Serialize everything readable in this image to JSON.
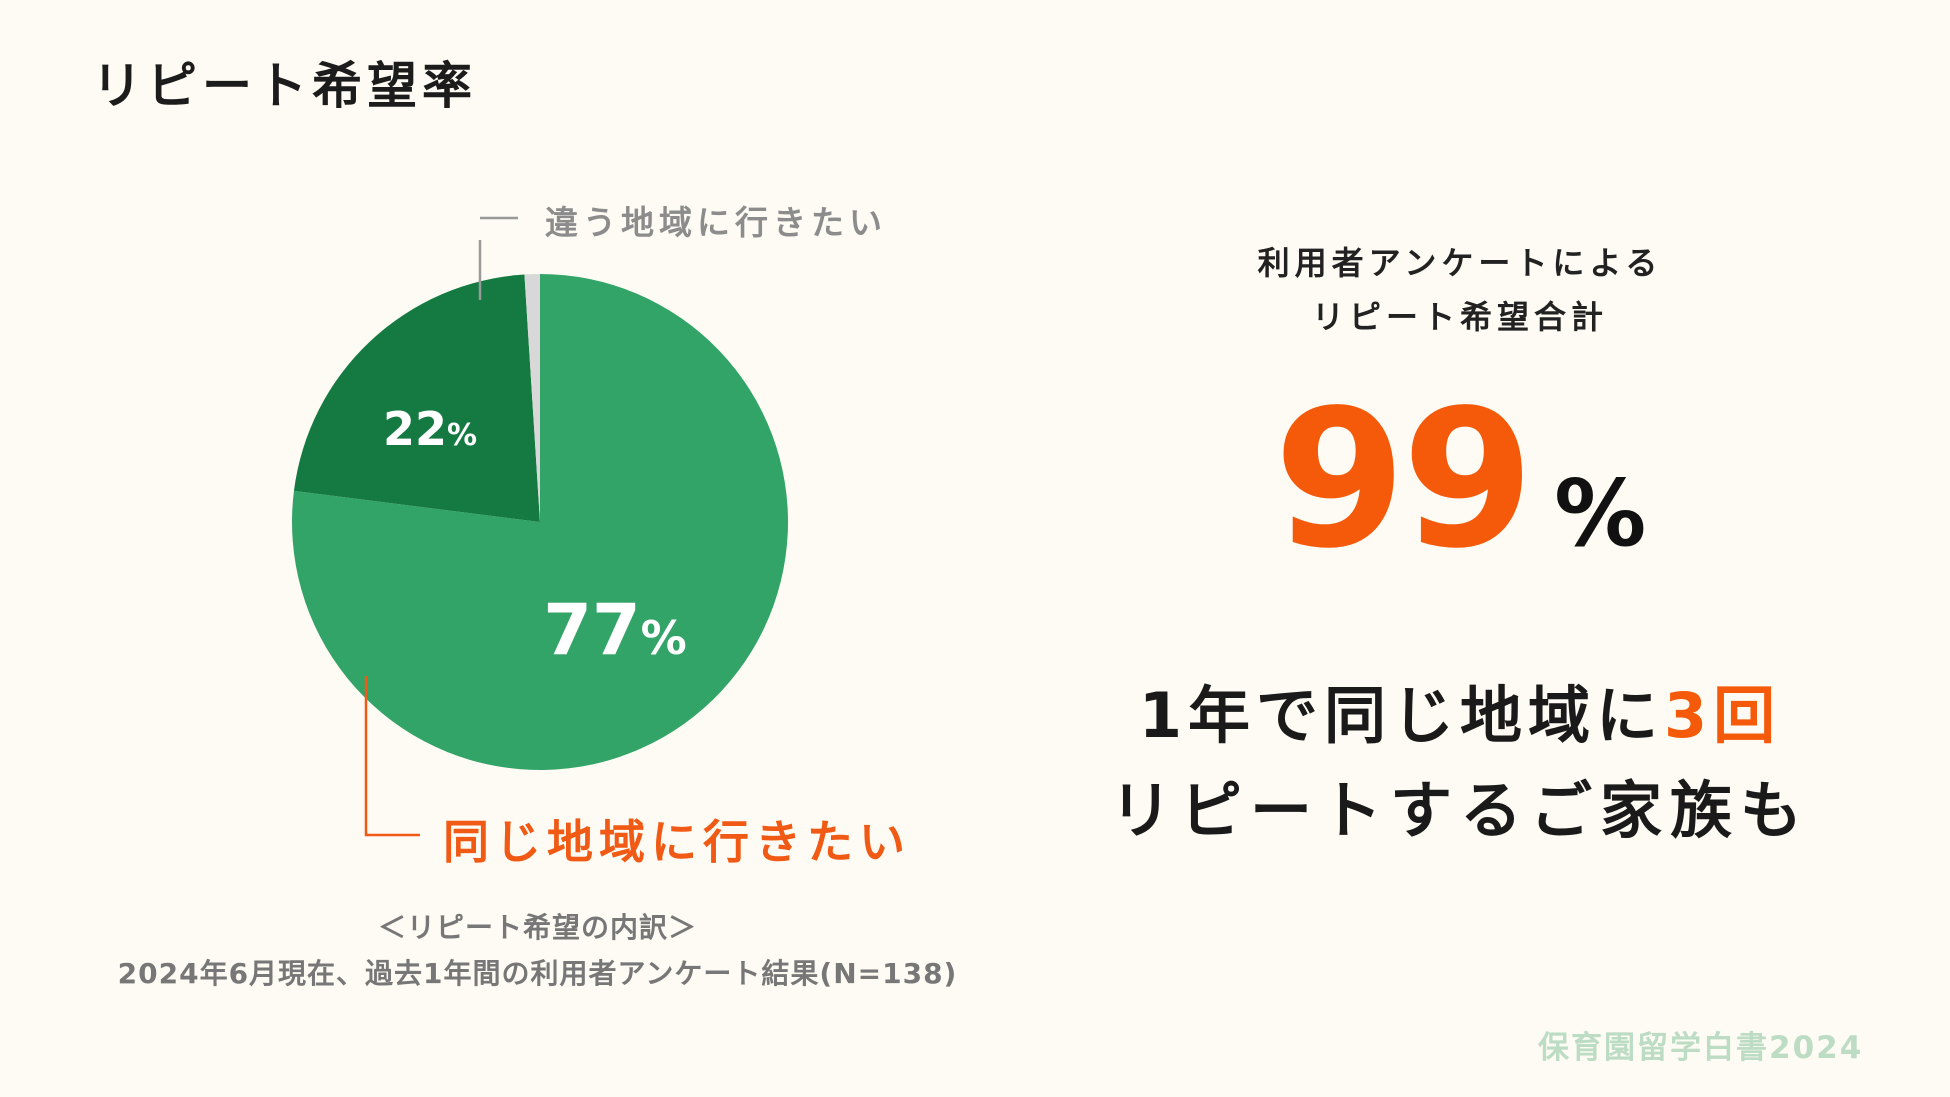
{
  "title": "リピート希望率",
  "chart_data": {
    "type": "pie",
    "slices": [
      {
        "label": "同じ地域に行きたい",
        "value": 77,
        "display": "77",
        "unit": "%",
        "color": "#33a468"
      },
      {
        "label": "違う地域に行きたい",
        "value": 22,
        "display": "22",
        "unit": "%",
        "color": "#147a42"
      },
      {
        "label": "",
        "value": 1,
        "color": "#d8d8d8"
      }
    ],
    "label_same": "同じ地域に行きたい",
    "label_other": "違う地域に行きたい",
    "leader_colors": {
      "same": "#f05a14",
      "other": "#999999"
    }
  },
  "notes": {
    "line1": "＜リピート希望の内訳＞",
    "line2": "2024年6月現在、過去1年間の利用者アンケート結果(N=138)"
  },
  "summary": {
    "caption_line1": "利用者アンケートによる",
    "caption_line2": "リピート希望合計",
    "big_number": "99",
    "big_unit": "%",
    "line1_prefix": "1年で同じ地域に",
    "line1_highlight": "3回",
    "line2": "リピートするご家族も"
  },
  "brand": "保育園留学白書2024"
}
